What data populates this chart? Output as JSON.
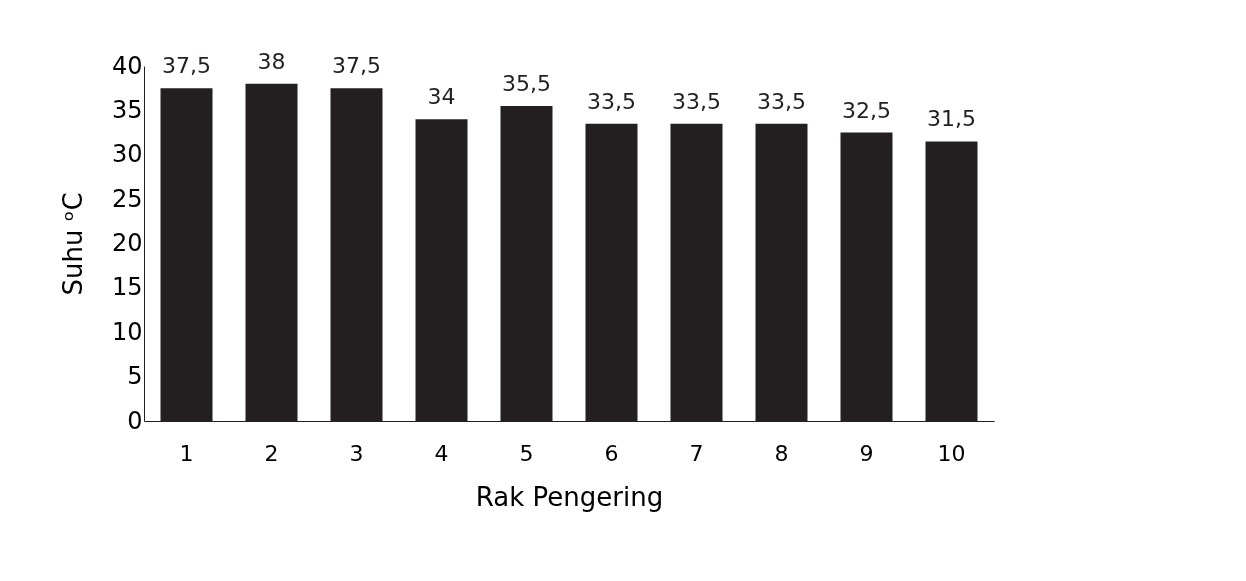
{
  "chart_data": {
    "type": "bar",
    "categories": [
      "1",
      "2",
      "3",
      "4",
      "5",
      "6",
      "7",
      "8",
      "9",
      "10"
    ],
    "values": [
      37.5,
      38,
      37.5,
      34,
      35.5,
      33.5,
      33.5,
      33.5,
      32.5,
      31.5
    ],
    "value_labels": [
      "37,5",
      "38",
      "37,5",
      "34",
      "35,5",
      "33,5",
      "33,5",
      "33,5",
      "32,5",
      "31,5"
    ],
    "color": "#231f20",
    "xlabel": "Rak Pengering",
    "ylabel": "Suhu ᵒC",
    "ylim": [
      0,
      40
    ],
    "yticks": [
      0,
      5,
      10,
      15,
      20,
      25,
      30,
      35,
      40
    ],
    "grid": false
  }
}
